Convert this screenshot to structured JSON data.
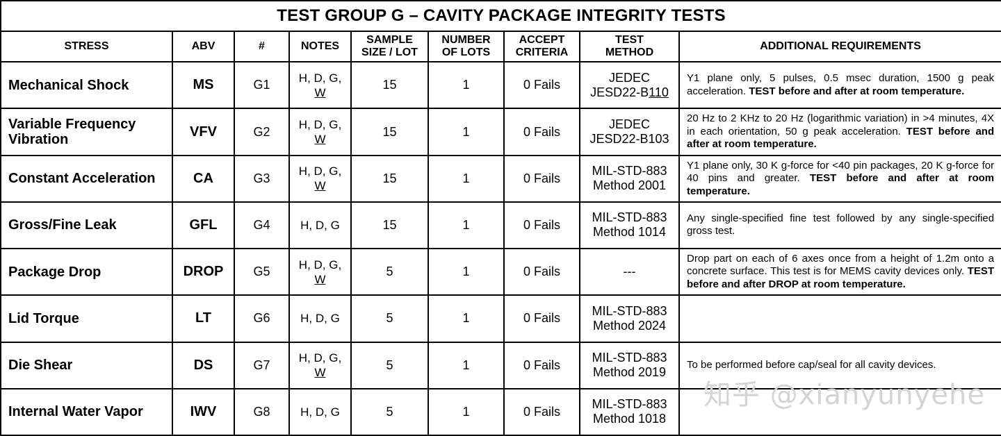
{
  "title": "TEST GROUP G – CAVITY PACKAGE INTEGRITY TESTS",
  "headers": {
    "stress": "STRESS",
    "abv": "ABV",
    "num": "#",
    "notes": "NOTES",
    "sample_1": "SAMPLE",
    "sample_2": "SIZE / LOT",
    "lots_1": "NUMBER",
    "lots_2": "OF LOTS",
    "accept_1": "ACCEPT",
    "accept_2": "CRITERIA",
    "method_1": "TEST",
    "method_2": "METHOD",
    "additional": "ADDITIONAL REQUIREMENTS"
  },
  "rows": [
    {
      "stress": "Mechanical Shock",
      "abv": "MS",
      "num": "G1",
      "notes_1": "H, D, G,",
      "notes_2": "W",
      "sample": "15",
      "lots": "1",
      "accept": "0 Fails",
      "method_1": "JEDEC",
      "method_2a": "JESD22-B",
      "method_2b": "110",
      "add_normal": "Y1 plane only, 5 pulses, 0.5 msec duration, 1500 g peak acceleration. ",
      "add_bold": "TEST before and after at room temperature."
    },
    {
      "stress": "Variable Frequency Vibration",
      "abv": "VFV",
      "num": "G2",
      "notes_1": "H, D, G,",
      "notes_2": "W",
      "sample": "15",
      "lots": "1",
      "accept": "0 Fails",
      "method_1": "JEDEC",
      "method_2": "JESD22-B103",
      "add_normal": "20 Hz to 2 KHz to 20 Hz (logarithmic variation) in >4 minutes, 4X in each orientation, 50 g peak acceleration.  ",
      "add_bold": "TEST before and after at room temperature."
    },
    {
      "stress": "Constant Acceleration",
      "abv": "CA",
      "num": "G3",
      "notes_1": "H, D, G,",
      "notes_2": "W",
      "sample": "15",
      "lots": "1",
      "accept": "0 Fails",
      "method_1": "MIL-STD-883",
      "method_2": "Method 2001",
      "add_normal": "Y1 plane only, 30 K g-force for <40 pin packages, 20 K g-force for 40 pins and greater.  ",
      "add_bold": "TEST before and after at room temperature."
    },
    {
      "stress": "Gross/Fine Leak",
      "abv": "GFL",
      "num": "G4",
      "notes": "H, D, G",
      "sample": "15",
      "lots": "1",
      "accept": "0 Fails",
      "method_1": "MIL-STD-883",
      "method_2": "Method 1014",
      "add_normal": "Any single-specified fine test followed by any single-specified gross test."
    },
    {
      "stress": "Package Drop",
      "abv": "DROP",
      "num": "G5",
      "notes_1": "H, D, G,",
      "notes_2": "W",
      "sample": "5",
      "lots": "1",
      "accept": "0 Fails",
      "method": "---",
      "add_normal": "Drop part on each of 6 axes once from a height of 1.2m onto a concrete surface.  This test is for MEMS cavity devices only. ",
      "add_bold": "TEST before and after DROP at room temperature."
    },
    {
      "stress": "Lid Torque",
      "abv": "LT",
      "num": "G6",
      "notes": "H, D, G",
      "sample": "5",
      "lots": "1",
      "accept": "0 Fails",
      "method_1": "MIL-STD-883",
      "method_2": "Method 2024"
    },
    {
      "stress": "Die Shear",
      "abv": "DS",
      "num": "G7",
      "notes_1": "H, D, G,",
      "notes_2": "W",
      "sample": "5",
      "lots": "1",
      "accept": "0 Fails",
      "method_1": "MIL-STD-883",
      "method_2": "Method 2019",
      "add_normal": "To be performed before cap/seal for all cavity devices."
    },
    {
      "stress": "Internal Water Vapor",
      "abv": "IWV",
      "num": "G8",
      "notes": "H, D, G",
      "sample": "5",
      "lots": "1",
      "accept": "0 Fails",
      "method_1": "MIL-STD-883",
      "method_2": "Method 1018"
    }
  ],
  "watermark": "知乎 @xianyunyehe"
}
